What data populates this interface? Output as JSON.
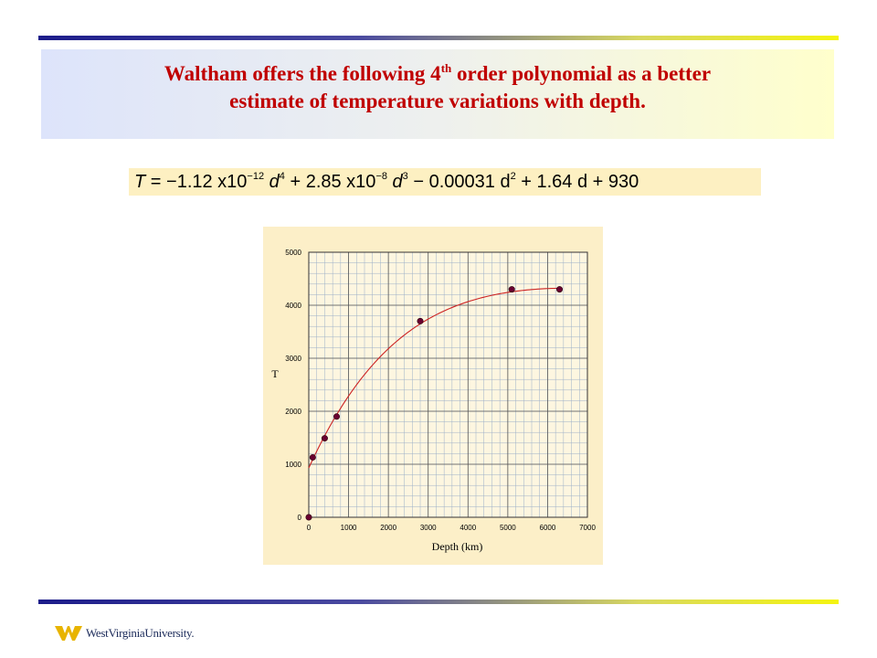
{
  "slide": {
    "title_line1_pre": "Waltham offers the following 4",
    "title_line1_sup": "th",
    "title_line1_post": " order polynomial as a better",
    "title_line2": "estimate of temperature variations with depth.",
    "title_color": "#c00000"
  },
  "equation": {
    "lhs": "T",
    "eq": " = −1.12 x10",
    "exp1": "−12",
    "p1": " d",
    "exp2": "4",
    "p2": " + 2.85 x10",
    "exp3": "−8",
    "p3": " d",
    "exp4": "3",
    "p4": " − 0.00031  d",
    "exp5": "2",
    "p5": " + 1.64 d + 930"
  },
  "chart_data": {
    "type": "scatter",
    "title": "",
    "xlabel": "Depth (km)",
    "ylabel": "T",
    "xlim": [
      0,
      7000
    ],
    "ylim": [
      0,
      5000
    ],
    "x_ticks": [
      "0",
      "1000",
      "2000",
      "3000",
      "4000",
      "5000",
      "6000",
      "7000"
    ],
    "y_ticks": [
      "0",
      "1000",
      "2000",
      "3000",
      "4000",
      "5000"
    ],
    "grid": true,
    "legend": "none",
    "series": [
      {
        "type": "scatter",
        "color": "#6a0030",
        "x": [
          0,
          100,
          400,
          700,
          2800,
          5100,
          6300
        ],
        "y": [
          0,
          1130,
          1490,
          1900,
          3700,
          4300,
          4300
        ]
      }
    ],
    "fit_curve": {
      "type": "line",
      "color": "#cc2222",
      "coefficients_desc": [
        -1.12e-12,
        2.85e-08,
        -0.00031,
        1.64,
        930
      ],
      "x_range": [
        0,
        6300
      ]
    }
  },
  "logo": {
    "text": "WestVirginiaUniversity."
  },
  "colors": {
    "chart_panel": "#fcefc8",
    "equation_bg": "#fdf0c2",
    "logo_gold": "#e8b400"
  }
}
